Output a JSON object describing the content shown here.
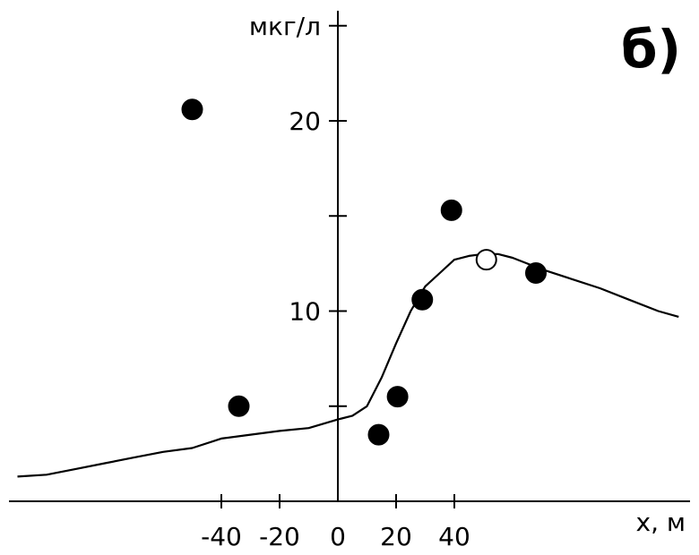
{
  "chart_data": {
    "type": "scatter",
    "panel_label": "б)",
    "xlabel": "x, м",
    "ylabel": "мкг/л",
    "xlim": [
      -110,
      117
    ],
    "ylim": [
      0,
      25.5
    ],
    "x_ticks": [
      {
        "value": -40,
        "label": "-40"
      },
      {
        "value": -20,
        "label": "-20"
      },
      {
        "value": 0,
        "label": "0"
      },
      {
        "value": 20,
        "label": "20"
      },
      {
        "value": 40,
        "label": "40"
      }
    ],
    "y_ticks": [
      {
        "value": 5,
        "label": ""
      },
      {
        "value": 10,
        "label": "10"
      },
      {
        "value": 15,
        "label": ""
      },
      {
        "value": 20,
        "label": "20"
      },
      {
        "value": 25,
        "label": ""
      }
    ],
    "grid": false,
    "series": [
      {
        "kind": "line",
        "color": "#000000",
        "points": [
          [
            -110,
            1.3
          ],
          [
            -100,
            1.4
          ],
          [
            -90,
            1.7
          ],
          [
            -80,
            2.0
          ],
          [
            -70,
            2.3
          ],
          [
            -60,
            2.6
          ],
          [
            -50,
            2.8
          ],
          [
            -40,
            3.3
          ],
          [
            -30,
            3.5
          ],
          [
            -20,
            3.7
          ],
          [
            -10,
            3.85
          ],
          [
            0,
            4.3
          ],
          [
            5,
            4.5
          ],
          [
            10,
            5.0
          ],
          [
            15,
            6.5
          ],
          [
            20,
            8.3
          ],
          [
            25,
            10.0
          ],
          [
            30,
            11.3
          ],
          [
            35,
            12.0
          ],
          [
            40,
            12.7
          ],
          [
            45,
            12.9
          ],
          [
            50,
            13.0
          ],
          [
            55,
            13.0
          ],
          [
            60,
            12.8
          ],
          [
            65,
            12.5
          ],
          [
            70,
            12.2
          ],
          [
            80,
            11.7
          ],
          [
            90,
            11.2
          ],
          [
            100,
            10.6
          ],
          [
            110,
            10.0
          ],
          [
            117,
            9.7
          ]
        ]
      },
      {
        "kind": "points",
        "marker": "filled",
        "color": "#000000",
        "points": [
          [
            -50,
            20.6
          ],
          [
            -34,
            5.0
          ],
          [
            14,
            3.5
          ],
          [
            20.5,
            5.5
          ],
          [
            29,
            10.6
          ],
          [
            39,
            15.3
          ],
          [
            68,
            12.0
          ]
        ]
      },
      {
        "kind": "points",
        "marker": "open",
        "color": "#000000",
        "points": [
          [
            51,
            12.7
          ]
        ]
      }
    ]
  }
}
